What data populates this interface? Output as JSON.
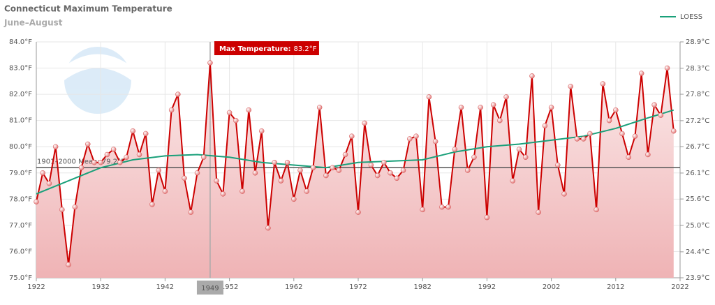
{
  "chart_data": {
    "type": "line",
    "title": "Connecticut Maximum Temperature",
    "subtitle": "June–August",
    "x": [
      1922,
      1923,
      1924,
      1925,
      1926,
      1927,
      1928,
      1929,
      1930,
      1931,
      1932,
      1933,
      1934,
      1935,
      1936,
      1937,
      1938,
      1939,
      1940,
      1941,
      1942,
      1943,
      1944,
      1945,
      1946,
      1947,
      1948,
      1949,
      1950,
      1951,
      1952,
      1953,
      1954,
      1955,
      1956,
      1957,
      1958,
      1959,
      1960,
      1961,
      1962,
      1963,
      1964,
      1965,
      1966,
      1967,
      1968,
      1969,
      1970,
      1971,
      1972,
      1973,
      1974,
      1975,
      1976,
      1977,
      1978,
      1979,
      1980,
      1981,
      1982,
      1983,
      1984,
      1985,
      1986,
      1987,
      1988,
      1989,
      1990,
      1991,
      1992,
      1993,
      1994,
      1995,
      1996,
      1997,
      1998,
      1999,
      2000,
      2001,
      2002,
      2003,
      2004,
      2005,
      2006,
      2007,
      2008,
      2009,
      2010,
      2011,
      2012,
      2013,
      2014,
      2015,
      2016,
      2017,
      2018,
      2019,
      2020,
      2021
    ],
    "series": [
      {
        "color": "#cc0000",
        "values": [
          77.9,
          79.0,
          78.6,
          80.0,
          77.6,
          75.5,
          77.7,
          79.2,
          80.1,
          79.4,
          79.4,
          79.7,
          79.9,
          79.4,
          79.6,
          80.6,
          79.7,
          80.5,
          77.8,
          79.1,
          78.3,
          81.4,
          82.0,
          78.8,
          77.5,
          79.0,
          79.6,
          83.2,
          78.7,
          78.2,
          81.3,
          81.0,
          78.3,
          81.4,
          79.0,
          80.6,
          76.9,
          79.4,
          78.7,
          79.4,
          78.0,
          79.1,
          78.3,
          79.2,
          81.5,
          78.9,
          79.2,
          79.1,
          79.7,
          80.4,
          77.5,
          80.9,
          79.3,
          78.9,
          79.4,
          79.0,
          78.8,
          79.1,
          80.3,
          80.4,
          77.6,
          81.9,
          80.2,
          77.7,
          77.7,
          79.9,
          81.5,
          79.1,
          79.6,
          81.5,
          77.3,
          81.6,
          81.0,
          81.9,
          78.7,
          79.9,
          79.6,
          82.7,
          77.5,
          80.8,
          81.5,
          79.3,
          78.2,
          82.3,
          80.3,
          80.3,
          80.5,
          77.6,
          82.4,
          81.0,
          81.4,
          80.5,
          79.6,
          80.4,
          82.8,
          79.7,
          81.6,
          81.2,
          83.0,
          80.6
        ]
      },
      {
        "name": "LOESS",
        "color": "#1aa07a",
        "x": [
          1922,
          1927,
          1932,
          1937,
          1942,
          1947,
          1952,
          1957,
          1962,
          1967,
          1972,
          1977,
          1982,
          1987,
          1992,
          1997,
          2002,
          2007,
          2012,
          2017,
          2021
        ],
        "values": [
          78.2,
          78.7,
          79.2,
          79.5,
          79.65,
          79.7,
          79.6,
          79.4,
          79.3,
          79.2,
          79.4,
          79.45,
          79.5,
          79.8,
          80.0,
          80.1,
          80.25,
          80.4,
          80.7,
          81.1,
          81.4
        ]
      }
    ],
    "xlim": [
      1922,
      2022
    ],
    "xticks": [
      1922,
      1932,
      1942,
      1952,
      1962,
      1972,
      1982,
      1992,
      2002,
      2012,
      2022
    ],
    "ylim": [
      75,
      84
    ],
    "yticks": [
      {
        "value": 75,
        "label": "75.0°F"
      },
      {
        "value": 76,
        "label": "76.0°F"
      },
      {
        "value": 77,
        "label": "77.0°F"
      },
      {
        "value": 78,
        "label": "78.0°F"
      },
      {
        "value": 79,
        "label": "79.0°F"
      },
      {
        "value": 80,
        "label": "80.0°F"
      },
      {
        "value": 81,
        "label": "81.0°F"
      },
      {
        "value": 82,
        "label": "82.0°F"
      },
      {
        "value": 83,
        "label": "83.0°F"
      },
      {
        "value": 84,
        "label": "84.0°F"
      }
    ],
    "y2lim": [
      23.89,
      28.89
    ],
    "y2ticks": [
      {
        "value": 23.89,
        "label": "23.9°C"
      },
      {
        "value": 24.44,
        "label": "24.4°C"
      },
      {
        "value": 25,
        "label": "25.0°C"
      },
      {
        "value": 25.56,
        "label": "25.6°C"
      },
      {
        "value": 26.11,
        "label": "26.1°C"
      },
      {
        "value": 26.67,
        "label": "26.7°C"
      },
      {
        "value": 27.22,
        "label": "27.2°C"
      },
      {
        "value": 27.78,
        "label": "27.8°C"
      },
      {
        "value": 28.33,
        "label": "28.3°C"
      },
      {
        "value": 28.89,
        "label": "28.9°C"
      }
    ],
    "grid": true,
    "legend": "top-right",
    "mean_line": {
      "value": 79.2,
      "label": "1901–2000 Mean: 79.2°F"
    },
    "crosshair": {
      "x": 1949
    },
    "tooltip": {
      "label": "Max Temperature:",
      "value_label": "83.2°F"
    }
  }
}
